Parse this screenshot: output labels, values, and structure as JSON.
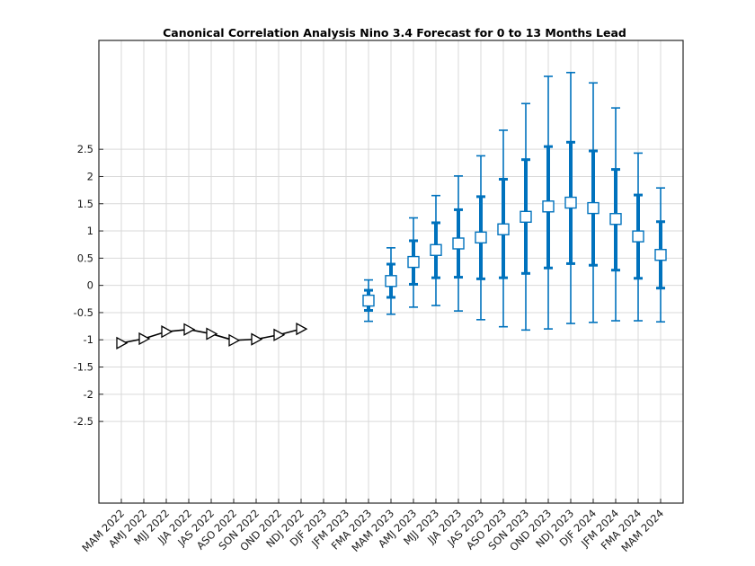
{
  "chart_data": {
    "type": "line",
    "title": "Canonical Correlation Analysis Nino 3.4 Forecast for 0 to 13 Months Lead",
    "xlabel": "",
    "ylabel": "",
    "categories": [
      "MAM 2022",
      "AMJ 2022",
      "MJJ 2022",
      "JJA 2022",
      "JAS 2022",
      "ASO 2022",
      "SON 2022",
      "OND 2022",
      "NDJ 2022",
      "DJF 2023",
      "JFM 2023",
      "FMA 2023",
      "MAM 2023",
      "AMJ 2023",
      "MJJ 2023",
      "JJA 2023",
      "JAS 2023",
      "ASO 2023",
      "SON 2023",
      "OND 2023",
      "NDJ 2023",
      "DJF 2024",
      "JFM 2024",
      "FMA 2024",
      "MAM 2024"
    ],
    "y_tick_labels": [
      "2.5",
      "2",
      "1.5",
      "1",
      "0.5",
      "0",
      "-0.5",
      "-1",
      "-1.5",
      "-2",
      "-2.5"
    ],
    "ylim": [
      -4,
      4.5
    ],
    "grid": true,
    "legend": "none",
    "observed": {
      "categories": [
        "MAM 2022",
        "AMJ 2022",
        "MJJ 2022",
        "JJA 2022",
        "JAS 2022",
        "ASO 2022",
        "SON 2022",
        "OND 2022",
        "NDJ 2022"
      ],
      "values": [
        -1.06,
        -0.98,
        -0.85,
        -0.81,
        -0.89,
        -1.01,
        -0.99,
        -0.91,
        -0.8
      ],
      "color": "#000000",
      "marker": "triangle-right"
    },
    "forecast": {
      "categories": [
        "FMA 2023",
        "MAM 2023",
        "AMJ 2023",
        "MJJ 2023",
        "JJA 2023",
        "JAS 2023",
        "ASO 2023",
        "SON 2023",
        "OND 2023",
        "NDJ 2023",
        "DJF 2024",
        "JFM 2024",
        "FMA 2024",
        "MAM 2024"
      ],
      "values": [
        -0.28,
        0.08,
        0.43,
        0.65,
        0.77,
        0.88,
        1.03,
        1.26,
        1.45,
        1.52,
        1.42,
        1.22,
        0.9,
        0.56
      ],
      "inner_low": [
        -0.46,
        -0.22,
        0.02,
        0.14,
        0.15,
        0.12,
        0.14,
        0.22,
        0.32,
        0.4,
        0.37,
        0.28,
        0.13,
        -0.05
      ],
      "inner_high": [
        -0.09,
        0.39,
        0.82,
        1.15,
        1.39,
        1.63,
        1.95,
        2.31,
        2.55,
        2.63,
        2.47,
        2.13,
        1.66,
        1.17
      ],
      "outer_low": [
        -0.66,
        -0.53,
        -0.4,
        -0.37,
        -0.47,
        -0.63,
        -0.76,
        -0.82,
        -0.8,
        -0.7,
        -0.68,
        -0.65,
        -0.65,
        -0.67
      ],
      "outer_high": [
        0.1,
        0.69,
        1.24,
        1.65,
        2.01,
        2.38,
        2.85,
        3.34,
        3.84,
        3.91,
        3.72,
        3.26,
        2.43,
        1.79
      ],
      "color": "#0072bd",
      "marker": "square"
    }
  }
}
